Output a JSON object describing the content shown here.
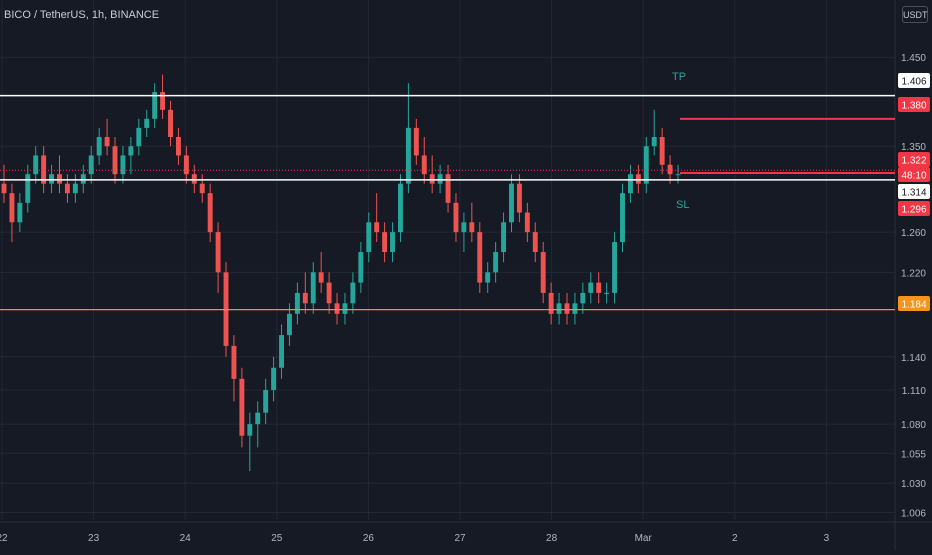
{
  "header": {
    "title": "BICO / TetherUS, 1h, BINANCE",
    "currency": "USDT"
  },
  "colors": {
    "background": "#161a25",
    "grid": "#232734",
    "up": "#26a69a",
    "down": "#ef5350",
    "support": "#f7931a",
    "resistance": "#ffffff",
    "target": "#f23645",
    "text": "#b2b5be",
    "last_price": "#f23645"
  },
  "chart_data": {
    "type": "candlestick",
    "title": "BICO / TetherUS, 1h, BINANCE",
    "y_scale": "log",
    "ylim": [
      1.0,
      1.482
    ],
    "x_tick_labels": [
      "22",
      "23",
      "24",
      "25",
      "26",
      "27",
      "28",
      "Mar",
      "2",
      "3"
    ],
    "y_tick_labels": [
      1.45,
      1.35,
      1.26,
      1.22,
      1.14,
      1.11,
      1.08,
      1.055,
      1.03,
      1.006
    ],
    "price_labels": {
      "resistance": "1.406",
      "take_profit": "1.380",
      "last": "1.322",
      "countdown": "48:10",
      "current_line": "1.314",
      "stop_loss": "1.296",
      "support": "1.184"
    },
    "horizontal_lines": [
      {
        "name": "resistance",
        "value": 1.406
      },
      {
        "name": "take_profit",
        "value": 1.38
      },
      {
        "name": "current",
        "value": 1.314
      },
      {
        "name": "stop_loss",
        "value": 1.296
      },
      {
        "name": "support",
        "value": 1.184
      }
    ],
    "annotations": [
      {
        "text": "TP"
      },
      {
        "text": "SL"
      }
    ],
    "ohlc": [
      [
        1.31,
        1.33,
        1.29,
        1.3
      ],
      [
        1.3,
        1.31,
        1.25,
        1.27
      ],
      [
        1.27,
        1.3,
        1.26,
        1.29
      ],
      [
        1.29,
        1.33,
        1.28,
        1.32
      ],
      [
        1.32,
        1.35,
        1.31,
        1.34
      ],
      [
        1.34,
        1.35,
        1.3,
        1.31
      ],
      [
        1.31,
        1.33,
        1.3,
        1.32
      ],
      [
        1.32,
        1.34,
        1.3,
        1.31
      ],
      [
        1.31,
        1.32,
        1.29,
        1.3
      ],
      [
        1.3,
        1.32,
        1.29,
        1.31
      ],
      [
        1.31,
        1.33,
        1.3,
        1.32
      ],
      [
        1.32,
        1.35,
        1.31,
        1.34
      ],
      [
        1.34,
        1.37,
        1.33,
        1.36
      ],
      [
        1.36,
        1.38,
        1.34,
        1.35
      ],
      [
        1.35,
        1.36,
        1.31,
        1.32
      ],
      [
        1.32,
        1.35,
        1.31,
        1.34
      ],
      [
        1.34,
        1.36,
        1.32,
        1.35
      ],
      [
        1.35,
        1.38,
        1.34,
        1.37
      ],
      [
        1.37,
        1.39,
        1.36,
        1.38
      ],
      [
        1.38,
        1.42,
        1.37,
        1.41
      ],
      [
        1.41,
        1.43,
        1.38,
        1.39
      ],
      [
        1.39,
        1.4,
        1.35,
        1.36
      ],
      [
        1.36,
        1.37,
        1.33,
        1.34
      ],
      [
        1.34,
        1.35,
        1.31,
        1.32
      ],
      [
        1.32,
        1.33,
        1.3,
        1.31
      ],
      [
        1.31,
        1.32,
        1.29,
        1.3
      ],
      [
        1.3,
        1.31,
        1.25,
        1.26
      ],
      [
        1.26,
        1.27,
        1.2,
        1.22
      ],
      [
        1.22,
        1.23,
        1.14,
        1.15
      ],
      [
        1.15,
        1.16,
        1.1,
        1.12
      ],
      [
        1.12,
        1.13,
        1.06,
        1.07
      ],
      [
        1.07,
        1.09,
        1.04,
        1.08
      ],
      [
        1.08,
        1.1,
        1.06,
        1.09
      ],
      [
        1.09,
        1.12,
        1.08,
        1.11
      ],
      [
        1.11,
        1.14,
        1.1,
        1.13
      ],
      [
        1.13,
        1.17,
        1.12,
        1.16
      ],
      [
        1.16,
        1.19,
        1.15,
        1.18
      ],
      [
        1.18,
        1.21,
        1.17,
        1.2
      ],
      [
        1.2,
        1.22,
        1.18,
        1.19
      ],
      [
        1.19,
        1.23,
        1.18,
        1.22
      ],
      [
        1.22,
        1.24,
        1.2,
        1.21
      ],
      [
        1.21,
        1.22,
        1.18,
        1.19
      ],
      [
        1.19,
        1.2,
        1.17,
        1.18
      ],
      [
        1.18,
        1.2,
        1.17,
        1.19
      ],
      [
        1.19,
        1.22,
        1.18,
        1.21
      ],
      [
        1.21,
        1.25,
        1.2,
        1.24
      ],
      [
        1.24,
        1.28,
        1.23,
        1.27
      ],
      [
        1.27,
        1.3,
        1.25,
        1.26
      ],
      [
        1.26,
        1.27,
        1.23,
        1.24
      ],
      [
        1.24,
        1.27,
        1.23,
        1.26
      ],
      [
        1.26,
        1.32,
        1.25,
        1.31
      ],
      [
        1.31,
        1.42,
        1.3,
        1.37
      ],
      [
        1.37,
        1.38,
        1.33,
        1.34
      ],
      [
        1.34,
        1.36,
        1.31,
        1.32
      ],
      [
        1.32,
        1.34,
        1.3,
        1.31
      ],
      [
        1.31,
        1.33,
        1.3,
        1.32
      ],
      [
        1.32,
        1.33,
        1.28,
        1.29
      ],
      [
        1.29,
        1.3,
        1.25,
        1.26
      ],
      [
        1.26,
        1.28,
        1.24,
        1.27
      ],
      [
        1.27,
        1.29,
        1.25,
        1.26
      ],
      [
        1.26,
        1.27,
        1.2,
        1.21
      ],
      [
        1.21,
        1.23,
        1.2,
        1.22
      ],
      [
        1.22,
        1.25,
        1.21,
        1.24
      ],
      [
        1.24,
        1.28,
        1.23,
        1.27
      ],
      [
        1.27,
        1.32,
        1.26,
        1.31
      ],
      [
        1.31,
        1.32,
        1.27,
        1.28
      ],
      [
        1.28,
        1.29,
        1.25,
        1.26
      ],
      [
        1.26,
        1.27,
        1.23,
        1.24
      ],
      [
        1.24,
        1.25,
        1.19,
        1.2
      ],
      [
        1.2,
        1.21,
        1.17,
        1.18
      ],
      [
        1.18,
        1.2,
        1.17,
        1.19
      ],
      [
        1.19,
        1.2,
        1.17,
        1.18
      ],
      [
        1.18,
        1.2,
        1.17,
        1.19
      ],
      [
        1.19,
        1.21,
        1.18,
        1.2
      ],
      [
        1.2,
        1.22,
        1.19,
        1.21
      ],
      [
        1.21,
        1.22,
        1.19,
        1.2
      ],
      [
        1.2,
        1.21,
        1.19,
        1.2
      ],
      [
        1.2,
        1.26,
        1.19,
        1.25
      ],
      [
        1.25,
        1.31,
        1.24,
        1.3
      ],
      [
        1.3,
        1.33,
        1.29,
        1.32
      ],
      [
        1.32,
        1.33,
        1.3,
        1.31
      ],
      [
        1.31,
        1.36,
        1.3,
        1.35
      ],
      [
        1.35,
        1.39,
        1.34,
        1.36
      ],
      [
        1.36,
        1.37,
        1.32,
        1.33
      ],
      [
        1.33,
        1.34,
        1.31,
        1.32
      ],
      [
        1.32,
        1.33,
        1.31,
        1.32
      ]
    ]
  }
}
